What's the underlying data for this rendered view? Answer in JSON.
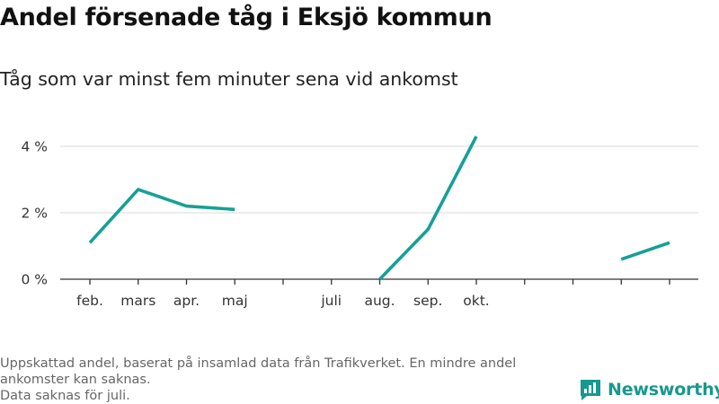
{
  "title": "Andel försenade tåg i Eksjö kommun",
  "subtitle": "Tåg som var minst fem minuter sena vid ankomst",
  "footer": {
    "note_line1": "Uppskattad andel, baserat på insamlad data från Trafikverket. En mindre andel",
    "note_line2": "ankomster kan saknas.",
    "note_line3": "Data saknas för juli."
  },
  "brand": {
    "name": "Newsworthy",
    "color": "#16998e",
    "icon": "bar-chart-logo-icon"
  },
  "chart_data": {
    "type": "line",
    "title": "Andel försenade tåg i Eksjö kommun",
    "subtitle": "Tåg som var minst fem minuter sena vid ankomst",
    "xlabel": "",
    "ylabel": "",
    "categories": [
      "feb.",
      "mars",
      "apr.",
      "maj",
      "",
      "juli",
      "aug.",
      "sep.",
      "okt.",
      "",
      "",
      "",
      ""
    ],
    "series": [
      {
        "values": [
          1.1,
          2.7,
          2.2,
          2.1,
          null,
          null,
          0,
          1.5,
          4.3,
          null,
          null,
          0.6,
          1.1
        ],
        "color": "#16a096"
      }
    ],
    "y_ticks": [
      {
        "value": 0,
        "label": "0 %"
      },
      {
        "value": 2,
        "label": "2 %"
      },
      {
        "value": 4,
        "label": "4 %"
      }
    ],
    "ylim": [
      0,
      4.6
    ],
    "grid": true,
    "legend": "none"
  }
}
